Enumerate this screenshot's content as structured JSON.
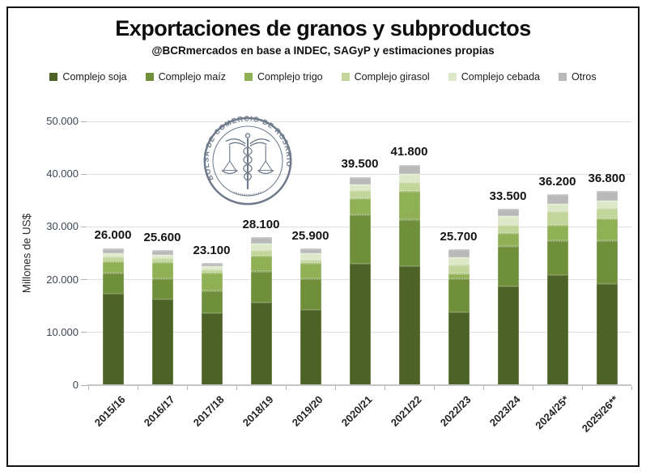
{
  "chart_data": {
    "type": "bar",
    "stacked": true,
    "title": "Exportaciones de granos y subproductos",
    "subtitle": "@BCRmercados en base a INDEC, SAGyP y estimaciones propias",
    "ylabel": "Millones de US$",
    "xlabel": "",
    "ylim": [
      0,
      50000
    ],
    "ytick_labels": [
      "0",
      "10.000",
      "20.000",
      "30.000",
      "40.000",
      "50.000"
    ],
    "grid": true,
    "legend_position": "top",
    "categories": [
      "2015/16",
      "2016/17",
      "2017/18",
      "2018/19",
      "2019/20",
      "2020/21",
      "2021/22",
      "2022/23",
      "2023/24",
      "2024/25*",
      "2025/26**"
    ],
    "totals": [
      26000,
      25600,
      23100,
      28100,
      25900,
      39500,
      41800,
      25700,
      33500,
      36200,
      36800
    ],
    "total_labels": [
      "26.000",
      "25.600",
      "23.100",
      "28.100",
      "25.900",
      "39.500",
      "41.800",
      "25.700",
      "33.500",
      "36.200",
      "36.800"
    ],
    "series": [
      {
        "name": "Complejo soja",
        "color": "#4d6227",
        "values": [
          17400,
          16200,
          13700,
          15600,
          14200,
          23000,
          22600,
          13800,
          18700,
          20900,
          19100
        ]
      },
      {
        "name": "Complejo maíz",
        "color": "#6f8f3a",
        "values": [
          3900,
          4100,
          4200,
          6100,
          6100,
          9300,
          8900,
          6500,
          7700,
          6500,
          8400
        ]
      },
      {
        "name": "Complejo trigo",
        "color": "#8fb054",
        "values": [
          2100,
          3000,
          3400,
          2900,
          2800,
          3100,
          5300,
          800,
          2400,
          2900,
          4100
        ]
      },
      {
        "name": "Complejo girasol",
        "color": "#c2d69c",
        "values": [
          1000,
          800,
          700,
          1000,
          700,
          1500,
          1700,
          1700,
          1600,
          2700,
          2000
        ]
      },
      {
        "name": "Complejo cebada",
        "color": "#dde8c8",
        "values": [
          600,
          600,
          600,
          1200,
          1200,
          1100,
          1500,
          1400,
          1600,
          1300,
          1300
        ]
      },
      {
        "name": "Otros",
        "color": "#b9b9b9",
        "values": [
          1000,
          900,
          500,
          1300,
          900,
          1500,
          1800,
          1500,
          1500,
          1900,
          1900
        ]
      }
    ]
  },
  "logo": {
    "seal_text": "BOLSA DE COMERCIO DE ROSARIO",
    "color": "#566478"
  }
}
